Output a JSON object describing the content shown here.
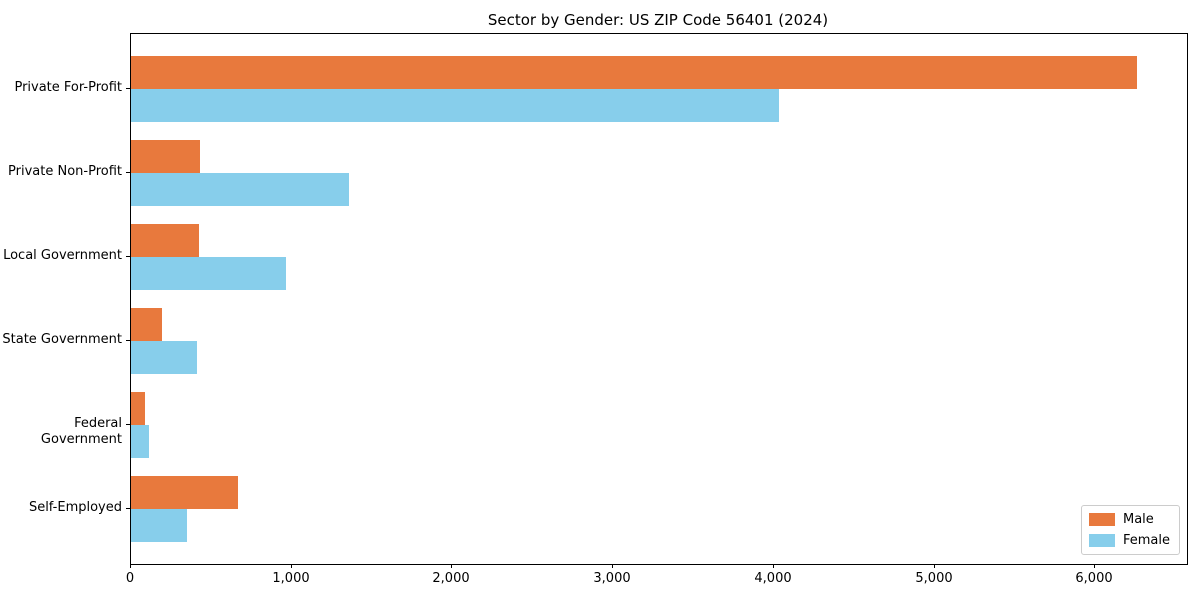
{
  "chart_data": {
    "type": "bar",
    "orientation": "horizontal",
    "title": "Sector by Gender: US ZIP Code 56401 (2024)",
    "categories": [
      "Private For-Profit",
      "Private Non-Profit",
      "Local Government",
      "State Government",
      "Federal Government",
      "Self-Employed"
    ],
    "series": [
      {
        "name": "Male",
        "color": "#E8793D",
        "values": [
          6260,
          430,
          420,
          195,
          85,
          665
        ]
      },
      {
        "name": "Female",
        "color": "#87CEEB",
        "values": [
          4030,
          1355,
          965,
          410,
          110,
          350
        ]
      }
    ],
    "xlabel": "",
    "ylabel": "",
    "xlim": [
      0,
      6570
    ],
    "xticks": [
      0,
      1000,
      2000,
      3000,
      4000,
      5000,
      6000
    ],
    "xtick_labels": [
      "0",
      "1,000",
      "2,000",
      "3,000",
      "4,000",
      "5,000",
      "6,000"
    ],
    "grid": false,
    "legend": {
      "position": "lower-right",
      "entries": [
        "Male",
        "Female"
      ]
    },
    "colors": {
      "background": "#ffffff",
      "spine": "#000000",
      "legend_border": "#cccccc"
    }
  }
}
